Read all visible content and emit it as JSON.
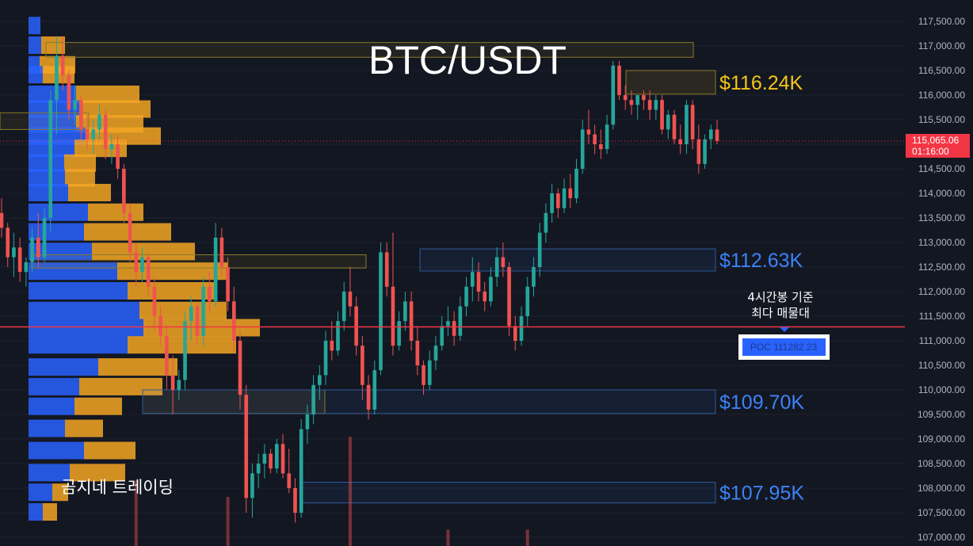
{
  "chart_data": {
    "type": "candlestick",
    "title": "BTC/USDT",
    "watermark": "곰지네 트레이딩",
    "ylim": [
      106900,
      117800
    ],
    "y_ticks": [
      "117,500.00",
      "117,000.00",
      "116,500.00",
      "116,000.00",
      "115,500.00",
      "115,000.00",
      "114,500.00",
      "114,000.00",
      "113,500.00",
      "113,000.00",
      "112,500.00",
      "112,000.00",
      "111,500.00",
      "111,000.00",
      "110,500.00",
      "110,000.00",
      "109,500.00",
      "109,000.00",
      "108,500.00",
      "108,000.00",
      "107,500.00",
      "107,000.00"
    ],
    "y_tick_values": [
      117500,
      117000,
      116500,
      116000,
      115500,
      115000,
      114500,
      114000,
      113500,
      113000,
      112500,
      112000,
      111500,
      111000,
      110500,
      110000,
      109500,
      109000,
      108500,
      108000,
      107500,
      107000
    ],
    "current_price": {
      "value": 115065.06,
      "label": "115,065.06",
      "countdown": "01:16:00",
      "color": "#f23645"
    },
    "poc": {
      "value": 111282.23,
      "label": "POC  111282.23",
      "note_line1": "4시간봉 기준",
      "note_line2": "최다 매물대",
      "line_color": "#f23645"
    },
    "zones": [
      {
        "label": "$116.24K",
        "top": 116500,
        "bottom": 116020,
        "color": "#f5c518",
        "kind": "resistance"
      },
      {
        "label": "$112.63K",
        "top": 112870,
        "bottom": 112420,
        "color": "#3b82f6",
        "kind": "support"
      },
      {
        "label": "$109.70K",
        "top": 110000,
        "bottom": 109520,
        "color": "#3b82f6",
        "kind": "support"
      },
      {
        "label": "$107.95K",
        "top": 108120,
        "bottom": 107700,
        "color": "#3b82f6",
        "kind": "support"
      }
    ],
    "highlight_boxes": [
      {
        "top": 117070,
        "bottom": 116770
      },
      {
        "top": 115640,
        "bottom": 115300
      },
      {
        "top": 112750,
        "bottom": 112480
      },
      {
        "top": 110000,
        "bottom": 109520
      }
    ],
    "volume_profile": [
      {
        "price": 117400,
        "buy": 15,
        "sell": 0
      },
      {
        "price": 117000,
        "buy": 16,
        "sell": 30
      },
      {
        "price": 116600,
        "buy": 14,
        "sell": 45
      },
      {
        "price": 116400,
        "buy": 18,
        "sell": 40
      },
      {
        "price": 116000,
        "buy": 60,
        "sell": 80
      },
      {
        "price": 115700,
        "buy": 64,
        "sell": 90
      },
      {
        "price": 115400,
        "buy": 60,
        "sell": 85
      },
      {
        "price": 115150,
        "buy": 72,
        "sell": 95
      },
      {
        "price": 114900,
        "buy": 58,
        "sell": 66
      },
      {
        "price": 114600,
        "buy": 45,
        "sell": 40
      },
      {
        "price": 114300,
        "buy": 46,
        "sell": 38
      },
      {
        "price": 114000,
        "buy": 50,
        "sell": 54
      },
      {
        "price": 113600,
        "buy": 75,
        "sell": 70
      },
      {
        "price": 113200,
        "buy": 70,
        "sell": 110
      },
      {
        "price": 112800,
        "buy": 80,
        "sell": 130
      },
      {
        "price": 112400,
        "buy": 112,
        "sell": 140
      },
      {
        "price": 112000,
        "buy": 125,
        "sell": 110
      },
      {
        "price": 111600,
        "buy": 140,
        "sell": 110
      },
      {
        "price": 111250,
        "buy": 145,
        "sell": 147
      },
      {
        "price": 110900,
        "buy": 125,
        "sell": 137
      },
      {
        "price": 110450,
        "buy": 88,
        "sell": 100
      },
      {
        "price": 110050,
        "buy": 64,
        "sell": 105
      },
      {
        "price": 109650,
        "buy": 58,
        "sell": 60
      },
      {
        "price": 109200,
        "buy": 46,
        "sell": 48
      },
      {
        "price": 108750,
        "buy": 70,
        "sell": 65
      },
      {
        "price": 108300,
        "buy": 52,
        "sell": 70
      },
      {
        "price": 107900,
        "buy": 30,
        "sell": 20
      },
      {
        "price": 107500,
        "buy": 18,
        "sell": 18
      }
    ],
    "candles": [
      [
        113600,
        113900,
        113100,
        113300
      ],
      [
        113300,
        113400,
        112500,
        112700
      ],
      [
        112700,
        113200,
        112300,
        112900
      ],
      [
        112900,
        113100,
        112200,
        112400
      ],
      [
        112400,
        112700,
        112100,
        112600
      ],
      [
        112600,
        113300,
        112400,
        113100
      ],
      [
        113100,
        113600,
        112500,
        112700
      ],
      [
        112700,
        113700,
        112600,
        113500
      ],
      [
        113500,
        116100,
        113200,
        115900
      ],
      [
        115900,
        117200,
        115200,
        116800
      ],
      [
        116800,
        117200,
        116100,
        116400
      ],
      [
        116400,
        116500,
        115500,
        115700
      ],
      [
        115700,
        116200,
        115400,
        115900
      ],
      [
        115900,
        116000,
        115100,
        115300
      ],
      [
        115300,
        115600,
        114900,
        115100
      ],
      [
        115100,
        115500,
        114800,
        115300
      ],
      [
        115300,
        115800,
        115100,
        115600
      ],
      [
        115600,
        115700,
        114700,
        114900
      ],
      [
        114900,
        115200,
        114600,
        115000
      ],
      [
        115000,
        115200,
        114300,
        114500
      ],
      [
        114500,
        114600,
        113400,
        113600
      ],
      [
        113600,
        113800,
        112600,
        112800
      ],
      [
        112800,
        113000,
        112100,
        112400
      ],
      [
        112400,
        112900,
        112200,
        112700
      ],
      [
        112700,
        112800,
        111900,
        112100
      ],
      [
        112100,
        112300,
        111200,
        111500
      ],
      [
        111500,
        111700,
        110900,
        111100
      ],
      [
        111100,
        111300,
        110000,
        110300
      ],
      [
        110300,
        110700,
        109500,
        110000
      ],
      [
        110000,
        110400,
        109800,
        110200
      ],
      [
        110200,
        111600,
        110000,
        111400
      ],
      [
        111400,
        111900,
        111000,
        111700
      ],
      [
        111700,
        111800,
        110900,
        111100
      ],
      [
        111100,
        112300,
        110900,
        112100
      ],
      [
        112100,
        112400,
        111600,
        111800
      ],
      [
        111800,
        113400,
        111700,
        113100
      ],
      [
        113100,
        113300,
        112300,
        112500
      ],
      [
        112500,
        112700,
        111600,
        111800
      ],
      [
        111800,
        112100,
        110800,
        111000
      ],
      [
        111000,
        111200,
        109600,
        109900
      ],
      [
        109900,
        110100,
        107500,
        107800
      ],
      [
        107800,
        108500,
        107400,
        108300
      ],
      [
        108300,
        108700,
        108000,
        108500
      ],
      [
        108500,
        108900,
        108200,
        108700
      ],
      [
        108700,
        108800,
        108300,
        108400
      ],
      [
        108400,
        109000,
        108300,
        108900
      ],
      [
        108900,
        109100,
        108200,
        108300
      ],
      [
        108300,
        108800,
        107900,
        108000
      ],
      [
        108000,
        108200,
        107300,
        107500
      ],
      [
        107500,
        109400,
        107400,
        109200
      ],
      [
        109200,
        109700,
        108900,
        109500
      ],
      [
        109500,
        110300,
        109300,
        110100
      ],
      [
        110100,
        110500,
        109800,
        110300
      ],
      [
        110300,
        111200,
        110100,
        111000
      ],
      [
        111000,
        111400,
        110600,
        110800
      ],
      [
        110800,
        111600,
        110700,
        111400
      ],
      [
        111400,
        112200,
        111200,
        112000
      ],
      [
        112000,
        112500,
        111500,
        111700
      ],
      [
        111700,
        111900,
        110700,
        110900
      ],
      [
        110900,
        111100,
        109800,
        110100
      ],
      [
        110100,
        110300,
        109400,
        109600
      ],
      [
        109600,
        110600,
        109500,
        110400
      ],
      [
        110400,
        113000,
        110300,
        112800
      ],
      [
        112800,
        113000,
        111900,
        112100
      ],
      [
        112100,
        113200,
        110700,
        110900
      ],
      [
        110900,
        111600,
        110800,
        111400
      ],
      [
        111400,
        112000,
        111200,
        111800
      ],
      [
        111800,
        112000,
        110800,
        111000
      ],
      [
        111000,
        111300,
        110300,
        110500
      ],
      [
        110500,
        110600,
        109900,
        110100
      ],
      [
        110100,
        110800,
        110000,
        110600
      ],
      [
        110600,
        111100,
        110400,
        110900
      ],
      [
        110900,
        111500,
        110800,
        111300
      ],
      [
        111300,
        111700,
        111100,
        111400
      ],
      [
        111400,
        111600,
        110900,
        111100
      ],
      [
        111100,
        111900,
        111000,
        111700
      ],
      [
        111700,
        112300,
        111500,
        112100
      ],
      [
        112100,
        112700,
        111800,
        112400
      ],
      [
        112400,
        112600,
        111800,
        112000
      ],
      [
        112000,
        112200,
        111600,
        111800
      ],
      [
        111800,
        112500,
        111700,
        112300
      ],
      [
        112300,
        112900,
        112100,
        112700
      ],
      [
        112700,
        113000,
        112300,
        112500
      ],
      [
        112500,
        112600,
        111100,
        111300
      ],
      [
        111300,
        111500,
        110800,
        111000
      ],
      [
        111000,
        111700,
        110900,
        111500
      ],
      [
        111500,
        112300,
        111300,
        112100
      ],
      [
        112100,
        112700,
        111900,
        112500
      ],
      [
        112500,
        113400,
        112300,
        113200
      ],
      [
        113200,
        113800,
        113000,
        113600
      ],
      [
        113600,
        114200,
        113400,
        114000
      ],
      [
        114000,
        114100,
        113500,
        113700
      ],
      [
        113700,
        114300,
        113600,
        114100
      ],
      [
        114100,
        114400,
        113700,
        113900
      ],
      [
        113900,
        114700,
        113800,
        114500
      ],
      [
        114500,
        115500,
        114400,
        115300
      ],
      [
        115300,
        115700,
        115000,
        115200
      ],
      [
        115200,
        115400,
        114800,
        115000
      ],
      [
        115000,
        115300,
        114700,
        114900
      ],
      [
        114900,
        115600,
        114800,
        115400
      ],
      [
        115400,
        116700,
        115300,
        116600
      ],
      [
        116600,
        116700,
        115900,
        116000
      ],
      [
        116000,
        116200,
        115700,
        115900
      ],
      [
        115900,
        116100,
        115600,
        115800
      ],
      [
        115800,
        116000,
        115500,
        116000
      ],
      [
        116000,
        116100,
        115700,
        115900
      ],
      [
        115900,
        116100,
        115500,
        115700
      ],
      [
        115700,
        116000,
        115500,
        115900
      ],
      [
        115900,
        116000,
        115200,
        115300
      ],
      [
        115300,
        115700,
        115100,
        115600
      ],
      [
        115600,
        115700,
        115000,
        115100
      ],
      [
        115100,
        115400,
        114800,
        115000
      ],
      [
        115000,
        115900,
        114800,
        115800
      ],
      [
        115800,
        115900,
        114900,
        115100
      ],
      [
        115100,
        115400,
        114400,
        114600
      ],
      [
        114600,
        115200,
        114500,
        115100
      ],
      [
        115100,
        115400,
        114900,
        115300
      ],
      [
        115300,
        115500,
        115000,
        115065
      ]
    ],
    "volume_spikes": [
      {
        "index": 22,
        "frac": 0.12
      },
      {
        "index": 37,
        "frac": 0.09
      },
      {
        "index": 57,
        "frac": 0.2
      },
      {
        "index": 73,
        "frac": 0.03
      },
      {
        "index": 86,
        "frac": 0.03
      }
    ],
    "colors": {
      "up": "#26a69a",
      "down": "#ef5350",
      "background": "#131722",
      "grid": "#1e222d",
      "profile_buy": "#2962ff",
      "profile_sell": "#f5a623"
    }
  }
}
